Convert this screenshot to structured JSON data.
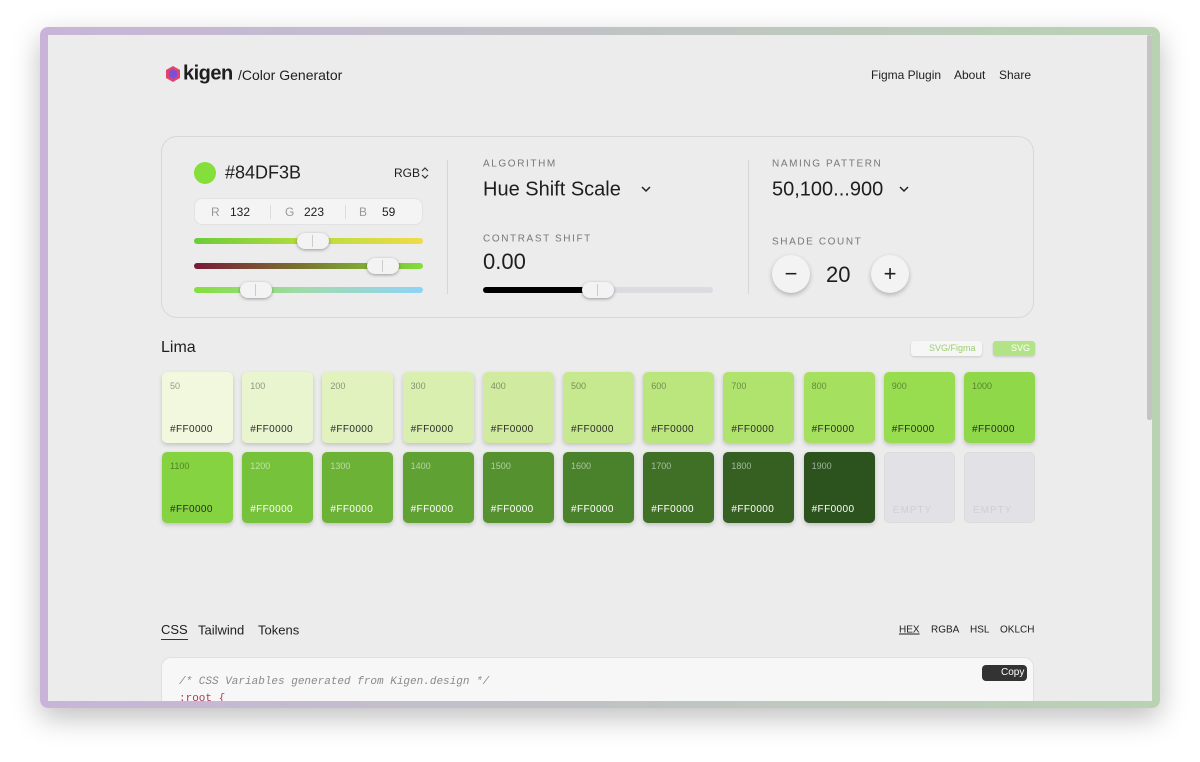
{
  "header": {
    "brand": "kigen",
    "title": "/Color Generator",
    "nav": [
      "Figma Plugin",
      "About",
      "Share"
    ]
  },
  "color": {
    "hex": "#84DF3B",
    "mode": "RGB",
    "channels": [
      {
        "label": "R",
        "value": "132"
      },
      {
        "label": "G",
        "value": "223"
      },
      {
        "label": "B",
        "value": "59"
      }
    ]
  },
  "algorithm": {
    "label": "ALGORITHM",
    "value": "Hue Shift Scale"
  },
  "contrast": {
    "label": "CONTRAST SHIFT",
    "value": "0.00"
  },
  "naming": {
    "label": "NAMING PATTERN",
    "value": "50,100...900"
  },
  "shades": {
    "label": "SHADE COUNT",
    "value": "20",
    "minus": "−",
    "plus": "+"
  },
  "palette": {
    "name": "Lima",
    "buttons": [
      "SVG/Figma",
      "SVG"
    ],
    "swatches": [
      {
        "label": "50",
        "hex": "#FF0000",
        "color": "#f1f8de"
      },
      {
        "label": "100",
        "hex": "#FF0000",
        "color": "#e9f5cf"
      },
      {
        "label": "200",
        "hex": "#FF0000",
        "color": "#e1f2bf"
      },
      {
        "label": "300",
        "hex": "#FF0000",
        "color": "#d9efb0"
      },
      {
        "label": "400",
        "hex": "#FF0000",
        "color": "#d0eb9f"
      },
      {
        "label": "500",
        "hex": "#FF0000",
        "color": "#c6e88e"
      },
      {
        "label": "600",
        "hex": "#FF0000",
        "color": "#bbe57d"
      },
      {
        "label": "700",
        "hex": "#FF0000",
        "color": "#b0e36d"
      },
      {
        "label": "800",
        "hex": "#FF0000",
        "color": "#a5e15f"
      },
      {
        "label": "900",
        "hex": "#FF0000",
        "color": "#98dd50"
      },
      {
        "label": "1000",
        "hex": "#FF0000",
        "color": "#8fd84a"
      },
      {
        "label": "1100",
        "hex": "#FF0000",
        "color": "#85d340"
      },
      {
        "label": "1200",
        "hex": "#FF0000",
        "color": "#77c23b"
      },
      {
        "label": "1300",
        "hex": "#FF0000",
        "color": "#6bb236"
      },
      {
        "label": "1400",
        "hex": "#FF0000",
        "color": "#5fa132"
      },
      {
        "label": "1500",
        "hex": "#FF0000",
        "color": "#55922f"
      },
      {
        "label": "1600",
        "hex": "#FF0000",
        "color": "#4a812b"
      },
      {
        "label": "1700",
        "hex": "#FF0000",
        "color": "#3f7026"
      },
      {
        "label": "1800",
        "hex": "#FF0000",
        "color": "#356022"
      },
      {
        "label": "1900",
        "hex": "#FF0000",
        "color": "#2c521e"
      }
    ],
    "empty": [
      "EMPTY",
      "EMPTY"
    ]
  },
  "output": {
    "tabs": [
      "CSS",
      "Tailwind",
      "Tokens"
    ],
    "formats": [
      "HEX",
      "RGBA",
      "HSL",
      "OKLCH"
    ],
    "code": [
      "/* CSS Variables generated from Kigen.design */",
      ":root {"
    ],
    "copy": "Copy"
  }
}
